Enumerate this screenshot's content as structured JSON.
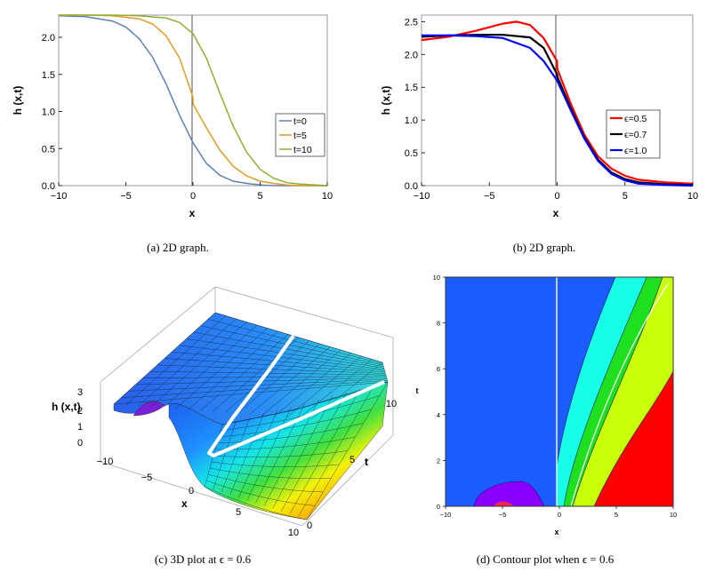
{
  "chart_data": [
    {
      "type": "line",
      "caption": "(a)  2D graph.",
      "xlabel": "x",
      "ylabel": "h (x,t)",
      "xlim": [
        -10,
        10
      ],
      "ylim": [
        0,
        2.3
      ],
      "xticks": [
        "−10",
        "−5",
        "0",
        "5",
        "10"
      ],
      "yticks": [
        "0.0",
        "0.5",
        "1.0",
        "1.5",
        "2.0"
      ],
      "legend_position": "right",
      "series": [
        {
          "name": "t=0",
          "color": "#5e81b5",
          "x": [
            -10,
            -8,
            -6,
            -5,
            -4,
            -3,
            -2,
            -1,
            0,
            1,
            2,
            3,
            4,
            5,
            6,
            8,
            10
          ],
          "y": [
            2.29,
            2.28,
            2.22,
            2.14,
            1.98,
            1.73,
            1.37,
            0.95,
            0.58,
            0.3,
            0.14,
            0.06,
            0.03,
            0.01,
            0.0,
            0.0,
            0.0
          ]
        },
        {
          "name": "t=5",
          "color": "#e19c24",
          "x": [
            -10,
            -8,
            -6,
            -4,
            -3,
            -2,
            -1,
            -0.01,
            0.01,
            1,
            2,
            3,
            4,
            5,
            6,
            7,
            8,
            10
          ],
          "y": [
            2.3,
            2.3,
            2.29,
            2.25,
            2.18,
            2.02,
            1.72,
            1.2,
            1.1,
            0.78,
            0.48,
            0.26,
            0.13,
            0.06,
            0.03,
            0.01,
            0.0,
            0.0
          ]
        },
        {
          "name": "t=10",
          "color": "#8fb032",
          "x": [
            -10,
            -6,
            -4,
            -2,
            -1,
            0,
            1,
            2,
            3,
            4,
            5,
            6,
            7,
            8,
            10
          ],
          "y": [
            2.3,
            2.3,
            2.29,
            2.26,
            2.2,
            2.05,
            1.72,
            1.25,
            0.8,
            0.45,
            0.22,
            0.1,
            0.04,
            0.02,
            0.0
          ]
        }
      ]
    },
    {
      "type": "line",
      "caption": "(b)  2D graph.",
      "xlabel": "x",
      "ylabel": "h (x,t)",
      "xlim": [
        -10,
        10
      ],
      "ylim": [
        0,
        2.6
      ],
      "xticks": [
        "−10",
        "−5",
        "0",
        "5",
        "10"
      ],
      "yticks": [
        "0.0",
        "0.5",
        "1.0",
        "1.5",
        "2.0",
        "2.5"
      ],
      "legend_position": "right",
      "series": [
        {
          "name": "ϵ=0.5",
          "color": "#ff0000",
          "x": [
            -10,
            -8,
            -6,
            -4,
            -3,
            -2,
            -1,
            -0.01,
            0.01,
            1,
            2,
            3,
            4,
            5,
            6,
            8,
            10
          ],
          "y": [
            2.22,
            2.27,
            2.36,
            2.47,
            2.5,
            2.45,
            2.25,
            1.9,
            1.78,
            1.25,
            0.78,
            0.45,
            0.26,
            0.15,
            0.09,
            0.05,
            0.03
          ]
        },
        {
          "name": "ϵ=0.7",
          "color": "#000000",
          "x": [
            -10,
            -8,
            -6,
            -4,
            -2,
            -1,
            -0.01,
            0.01,
            1,
            2,
            3,
            4,
            5,
            6,
            8,
            10
          ],
          "y": [
            2.27,
            2.29,
            2.3,
            2.3,
            2.26,
            2.1,
            1.7,
            1.66,
            1.18,
            0.74,
            0.4,
            0.2,
            0.1,
            0.05,
            0.02,
            0.01
          ]
        },
        {
          "name": "ϵ=1.0",
          "color": "#0000ff",
          "x": [
            -10,
            -8,
            -6,
            -4,
            -2,
            -1,
            0,
            1,
            2,
            3,
            4,
            5,
            6,
            8,
            10
          ],
          "y": [
            2.29,
            2.29,
            2.28,
            2.25,
            2.1,
            1.9,
            1.6,
            1.15,
            0.72,
            0.38,
            0.18,
            0.08,
            0.03,
            0.01,
            0.0
          ]
        }
      ]
    },
    {
      "type": "surface3d",
      "caption": "(c)  3D plot at ϵ = 0.6",
      "xlabel": "x",
      "ylabel": "t",
      "zlabel": "h (x,t)",
      "xticks": [
        "−10",
        "−5",
        "0",
        "5",
        "10"
      ],
      "yticks": [
        "0",
        "5",
        "10"
      ],
      "zticks": [
        "0",
        "1",
        "2",
        "3"
      ]
    },
    {
      "type": "contour",
      "caption": "(d)  Contour plot when ϵ = 0.6",
      "xlabel": "x",
      "ylabel": "t",
      "xlim": [
        -10,
        10
      ],
      "ylim": [
        0,
        10
      ],
      "xticks": [
        "−10",
        "−5",
        "0",
        "5",
        "10"
      ],
      "yticks": [
        "0",
        "2",
        "4",
        "6",
        "8",
        "10"
      ],
      "bands": [
        {
          "level": "violet",
          "color": "#8a00ff"
        },
        {
          "level": "blue",
          "color": "#1a5cff"
        },
        {
          "level": "cyan",
          "color": "#18ffe8"
        },
        {
          "level": "green",
          "color": "#1ee01e"
        },
        {
          "level": "lime",
          "color": "#c8ff0a"
        },
        {
          "level": "red",
          "color": "#ff0000"
        }
      ]
    }
  ]
}
